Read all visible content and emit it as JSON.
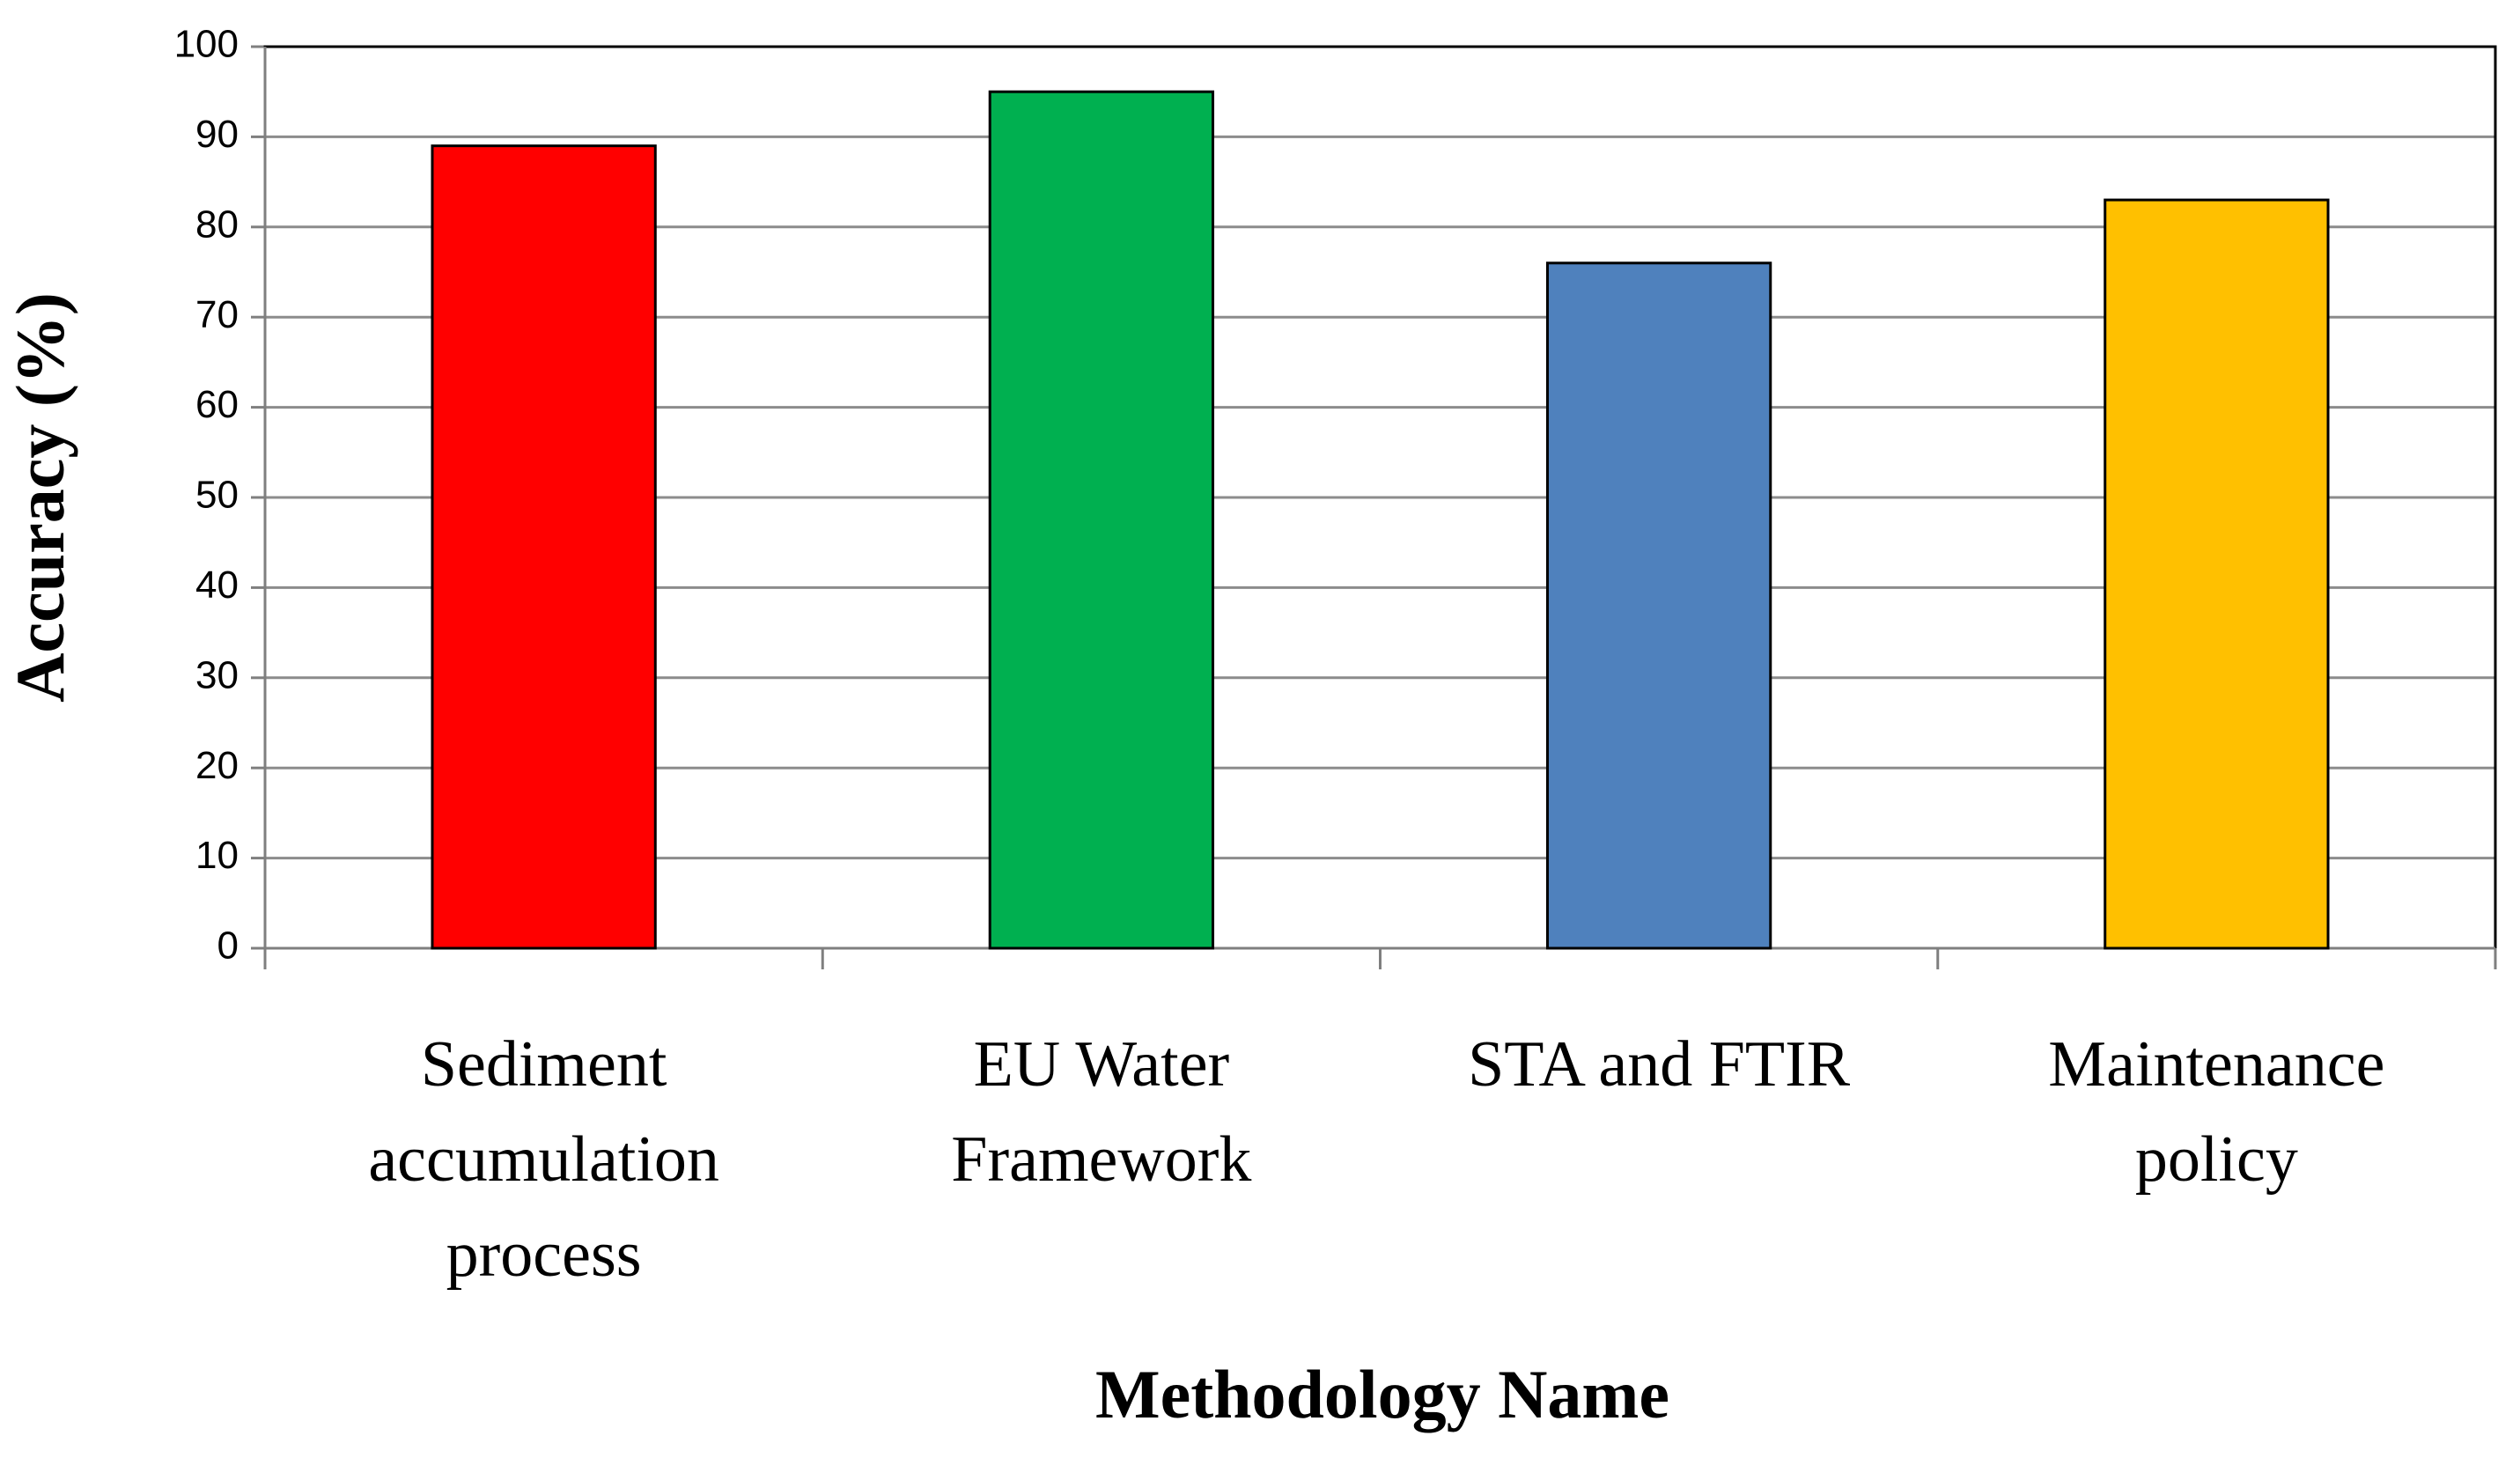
{
  "chart_data": {
    "type": "bar",
    "x_label": "Methodology Name",
    "y_label": "Accuracy (%)",
    "categories": [
      "Sediment accumulation process",
      "EU Water Framework",
      "STA and FTIR",
      "Maintenance policy"
    ],
    "values": [
      89,
      95,
      76,
      83
    ],
    "colors": [
      "#ff0000",
      "#00b050",
      "#4f81bd",
      "#ffc000"
    ],
    "ylim": [
      0,
      100
    ],
    "yticks": [
      0,
      10,
      20,
      30,
      40,
      50,
      60,
      70,
      80,
      90,
      100
    ],
    "grid": true
  }
}
